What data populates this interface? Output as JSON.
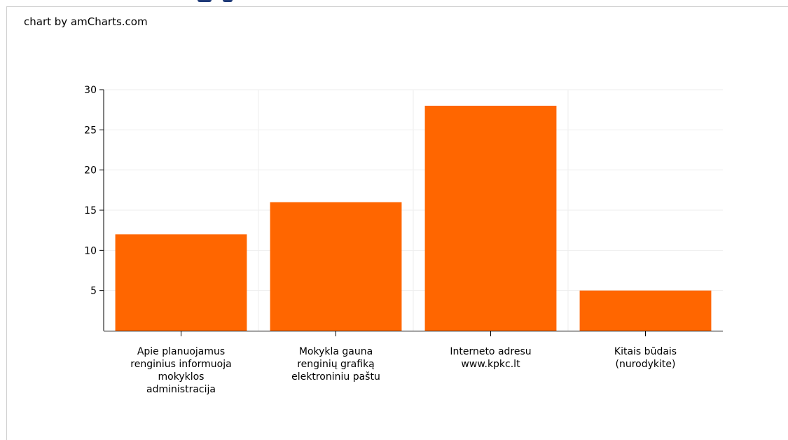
{
  "credit": "chart by amCharts.com",
  "colors": {
    "bar": "#ff6600",
    "axis": "#000000",
    "grid": "#eeeeee"
  },
  "chart_data": {
    "type": "bar",
    "categories": [
      [
        "Apie planuojamus",
        "renginius informuoja",
        "mokyklos",
        "administracija"
      ],
      [
        "Mokykla gauna",
        "renginių grafiką",
        "elektroniniu paštu"
      ],
      [
        "Interneto adresu",
        "www.kpkc.lt"
      ],
      [
        "Kitais būdais",
        "(nurodykite)"
      ]
    ],
    "values": [
      12,
      16,
      28,
      5
    ],
    "ylim": [
      0,
      30
    ],
    "yticks": [
      5,
      10,
      15,
      20,
      25,
      30
    ],
    "grid": true,
    "legend": "none"
  }
}
